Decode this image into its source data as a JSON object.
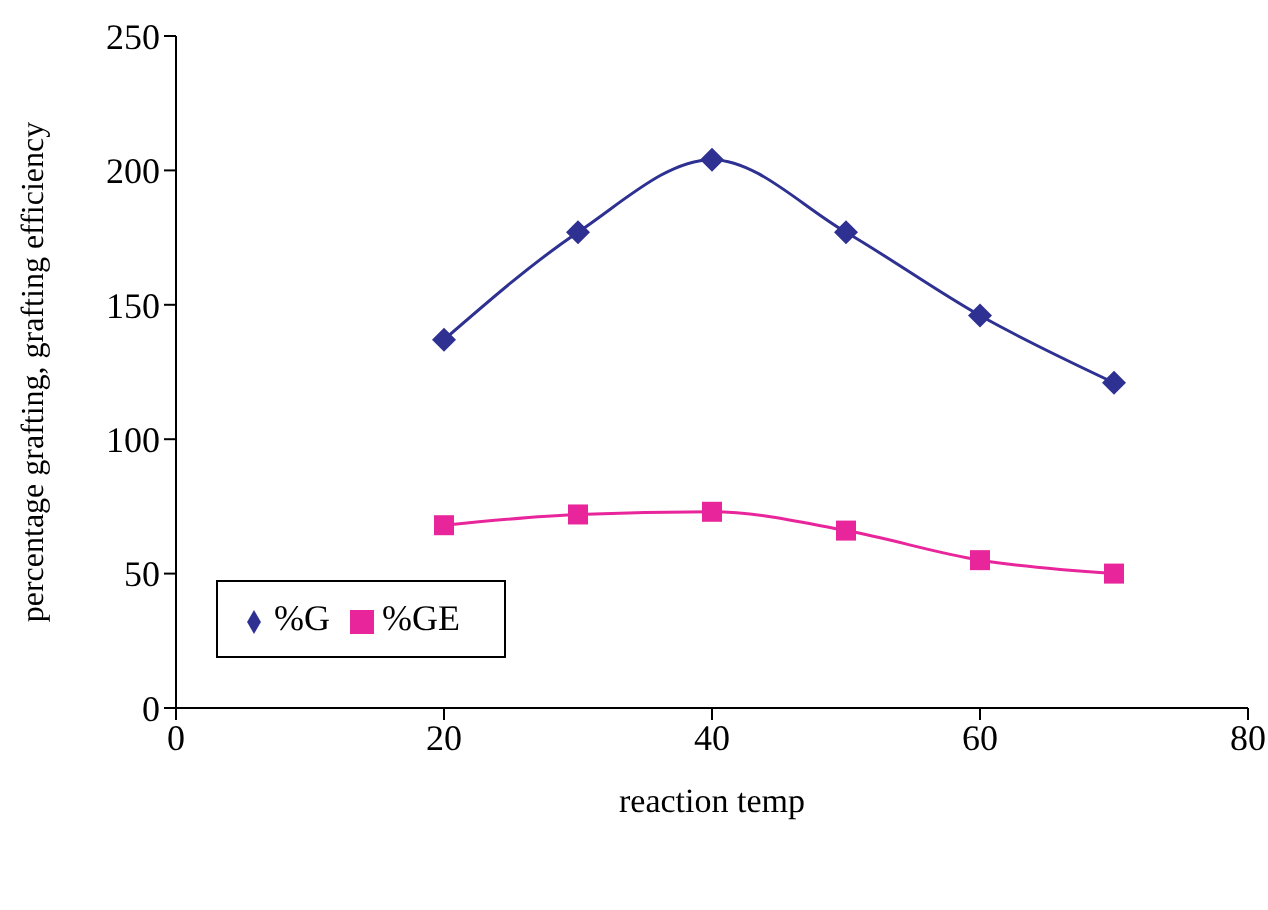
{
  "chart_data": {
    "type": "line",
    "xlabel": "reaction temp",
    "ylabel": "percentage grafting, grafting efficiency",
    "x": [
      20,
      30,
      40,
      50,
      60,
      70
    ],
    "series": [
      {
        "name": "%G",
        "color": "#2e3192",
        "marker": "diamond",
        "values": [
          137,
          177,
          204,
          177,
          146,
          121
        ]
      },
      {
        "name": "%GE",
        "color": "#e8259a",
        "marker": "square",
        "values": [
          68,
          72,
          73,
          66,
          55,
          50
        ]
      }
    ],
    "xlim": [
      0,
      80
    ],
    "xticks": [
      0,
      20,
      40,
      60,
      80
    ],
    "ylim": [
      0,
      250
    ],
    "yticks": [
      0,
      50,
      100,
      150,
      200,
      250
    ],
    "grid": false,
    "legend": "bottom left"
  }
}
